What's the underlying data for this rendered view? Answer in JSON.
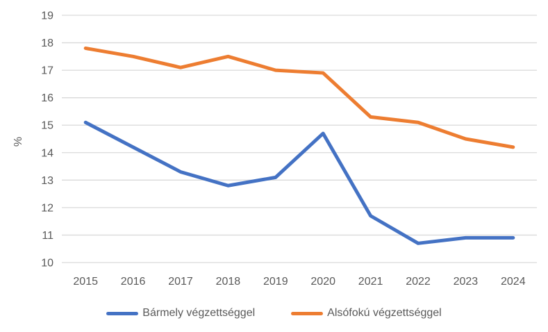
{
  "chart_data": {
    "type": "line",
    "title": "",
    "xlabel": "",
    "ylabel": "%",
    "categories": [
      "2015",
      "2016",
      "2017",
      "2018",
      "2019",
      "2020",
      "2021",
      "2022",
      "2023",
      "2024"
    ],
    "series": [
      {
        "name": "Bármely végzettséggel",
        "color": "#4472C4",
        "values": [
          15.1,
          14.2,
          13.3,
          12.8,
          13.1,
          14.7,
          11.7,
          10.7,
          10.9,
          10.9
        ]
      },
      {
        "name": "Alsófokú végzettséggel",
        "color": "#ED7D31",
        "values": [
          17.8,
          17.5,
          17.1,
          17.5,
          17.0,
          16.9,
          15.3,
          15.1,
          14.5,
          14.2
        ]
      }
    ],
    "ylim": [
      10,
      19
    ],
    "ytick_step": 1,
    "yticks": [
      "10",
      "11",
      "12",
      "13",
      "14",
      "15",
      "16",
      "17",
      "18",
      "19"
    ],
    "grid": true,
    "legend_position": "bottom",
    "colors": {
      "grid": "#D9D9D9",
      "text": "#595959",
      "background": "#FFFFFF"
    }
  }
}
